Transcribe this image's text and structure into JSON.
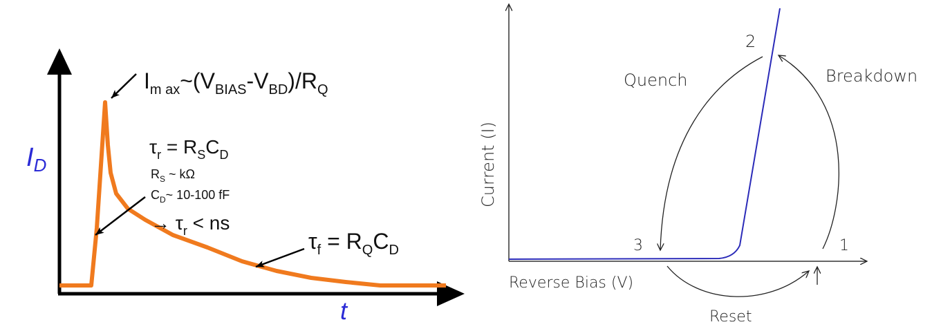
{
  "left_panel": {
    "y_axis_label": "I",
    "y_axis_sub": "D",
    "x_axis_label": "t",
    "imax": {
      "main": "I",
      "sub_max": "m ax",
      "tilde": "~(V",
      "sub_bias": "BIAS",
      "dash": "-V",
      "sub_bd": "BD",
      "close": ")/R",
      "sub_q": "Q"
    },
    "tau_r": {
      "sym": "τ",
      "sub": "r",
      "eq": " = R",
      "sub_s": "S",
      "c": "C",
      "sub_d": "D"
    },
    "rs_line": {
      "r": "R",
      "sub": "S",
      "rest": " ~ kΩ"
    },
    "cd_line": {
      "c": "C",
      "sub": "D",
      "rest": "~ 10-100 fF"
    },
    "arrow_line": {
      "arrow": "→",
      "tau": " τ",
      "sub": "r",
      "rest": " < ns"
    },
    "tau_f": {
      "sym": "τ",
      "sub": "f",
      "eq": " = R",
      "sub_q": "Q",
      "c": "C",
      "sub_d": "D"
    },
    "colors": {
      "curve": "#f07a1e",
      "axis": "#000000",
      "id_label": "#2b2bd6",
      "t_label": "#2b2bd6"
    }
  },
  "right_panel": {
    "y_axis_label": "Current (I)",
    "x_axis_label": "Reverse Bias (V)",
    "quench_label": "Quench",
    "breakdown_label": "Breakdown",
    "reset_label": "Reset",
    "point_1": "1",
    "point_2": "2",
    "point_3": "3",
    "colors": {
      "curve": "#2a2ab8",
      "axis": "#333333"
    }
  }
}
